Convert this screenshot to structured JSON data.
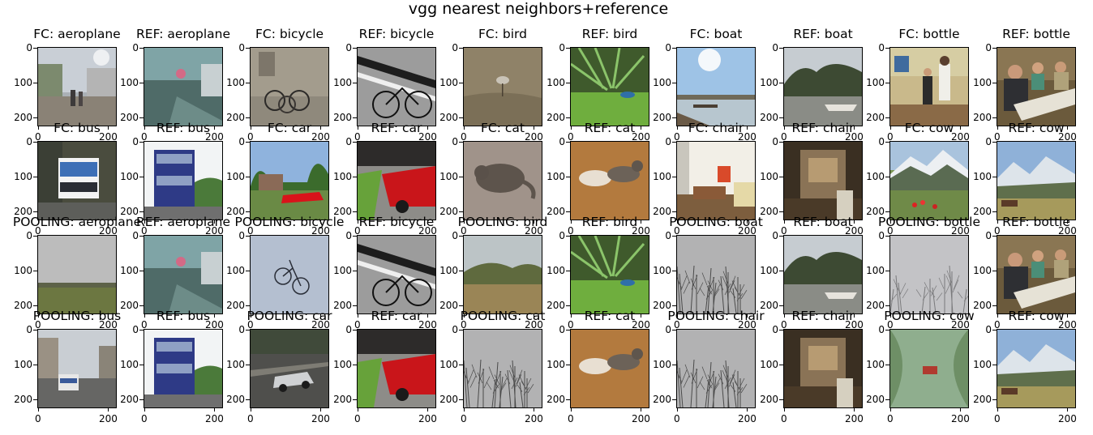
{
  "figure": {
    "title": "vgg nearest neighbors+reference"
  },
  "axis": {
    "y_ticks": [
      "0",
      "100",
      "200"
    ],
    "x_ticks": [
      "0",
      "200"
    ]
  },
  "rows": [
    {
      "panels": [
        {
          "title": "FC: aeroplane",
          "scene": "aeroplane-street"
        },
        {
          "title": "REF: aeroplane",
          "scene": "aeroplane-ref"
        },
        {
          "title": "FC: bicycle",
          "scene": "bicycles-wall"
        },
        {
          "title": "REF: bicycle",
          "scene": "bicycle-bw"
        },
        {
          "title": "FC: bird",
          "scene": "bird-grass"
        },
        {
          "title": "REF: bird",
          "scene": "bird-ref"
        },
        {
          "title": "FC: boat",
          "scene": "boat-lake"
        },
        {
          "title": "REF: boat",
          "scene": "boat-river"
        },
        {
          "title": "FC: bottle",
          "scene": "kitchen-people"
        },
        {
          "title": "REF: bottle",
          "scene": "dinner-table"
        }
      ]
    },
    {
      "panels": [
        {
          "title": "FC: bus",
          "scene": "bus-street"
        },
        {
          "title": "REF: bus",
          "scene": "bus-doubledecker"
        },
        {
          "title": "FC: car",
          "scene": "car-red-house"
        },
        {
          "title": "REF: car",
          "scene": "car-red-close"
        },
        {
          "title": "FC: cat",
          "scene": "cat-floor"
        },
        {
          "title": "REF: cat",
          "scene": "cats-wood"
        },
        {
          "title": "FC: chair",
          "scene": "living-room"
        },
        {
          "title": "REF: chair",
          "scene": "room-doorway"
        },
        {
          "title": "FC: cow",
          "scene": "cow-mountains"
        },
        {
          "title": "REF: cow",
          "scene": "cow-valley"
        }
      ]
    },
    {
      "panels": [
        {
          "title": "POOLING: aeroplane",
          "scene": "field-overcast"
        },
        {
          "title": "REF: aeroplane",
          "scene": "aeroplane-ref"
        },
        {
          "title": "POOLING: bicycle",
          "scene": "bicycle-sky"
        },
        {
          "title": "REF: bicycle",
          "scene": "bicycle-bw"
        },
        {
          "title": "POOLING: bird",
          "scene": "savanna"
        },
        {
          "title": "REF: bird",
          "scene": "bird-ref"
        },
        {
          "title": "POOLING: boat",
          "scene": "bare-trees"
        },
        {
          "title": "REF: boat",
          "scene": "boat-river"
        },
        {
          "title": "POOLING: bottle",
          "scene": "bare-trees-light"
        },
        {
          "title": "REF: bottle",
          "scene": "dinner-table"
        }
      ]
    },
    {
      "panels": [
        {
          "title": "POOLING: bus",
          "scene": "bus-city"
        },
        {
          "title": "REF: bus",
          "scene": "bus-doubledecker"
        },
        {
          "title": "POOLING: car",
          "scene": "car-silver"
        },
        {
          "title": "REF: car",
          "scene": "car-red-close"
        },
        {
          "title": "POOLING: cat",
          "scene": "bare-trees"
        },
        {
          "title": "REF: cat",
          "scene": "cats-wood"
        },
        {
          "title": "POOLING: chair",
          "scene": "bare-trees"
        },
        {
          "title": "REF: chair",
          "scene": "room-doorway"
        },
        {
          "title": "POOLING: cow",
          "scene": "forest-fog"
        },
        {
          "title": "REF: cow",
          "scene": "cow-valley"
        }
      ]
    }
  ]
}
